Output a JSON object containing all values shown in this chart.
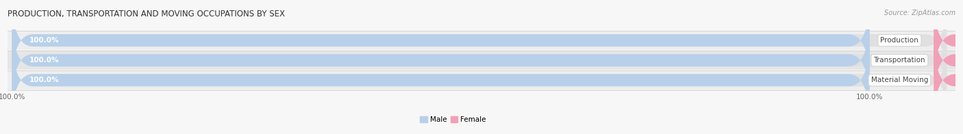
{
  "title": "PRODUCTION, TRANSPORTATION AND MOVING OCCUPATIONS BY SEX",
  "source": "Source: ZipAtlas.com",
  "categories": [
    "Production",
    "Transportation",
    "Material Moving"
  ],
  "male_values": [
    100.0,
    100.0,
    100.0
  ],
  "female_values": [
    0.0,
    0.0,
    0.0
  ],
  "male_color": "#b8d0ea",
  "female_color": "#f2a0b8",
  "label_bg_color": "#ffffff",
  "bar_bg_color": "#e0e0e0",
  "background_color": "#f7f7f7",
  "row_bg_colors": [
    "#efefef",
    "#e8e8e8"
  ],
  "title_fontsize": 8.5,
  "source_fontsize": 7,
  "tick_fontsize": 7.5,
  "label_fontsize": 7.5,
  "bar_height": 0.62,
  "male_label_color": "#ffffff",
  "female_label_color": "#888888",
  "xlim": [
    0,
    110
  ],
  "male_pct": 100.0,
  "female_pct": 0.0,
  "female_bar_width": 8
}
